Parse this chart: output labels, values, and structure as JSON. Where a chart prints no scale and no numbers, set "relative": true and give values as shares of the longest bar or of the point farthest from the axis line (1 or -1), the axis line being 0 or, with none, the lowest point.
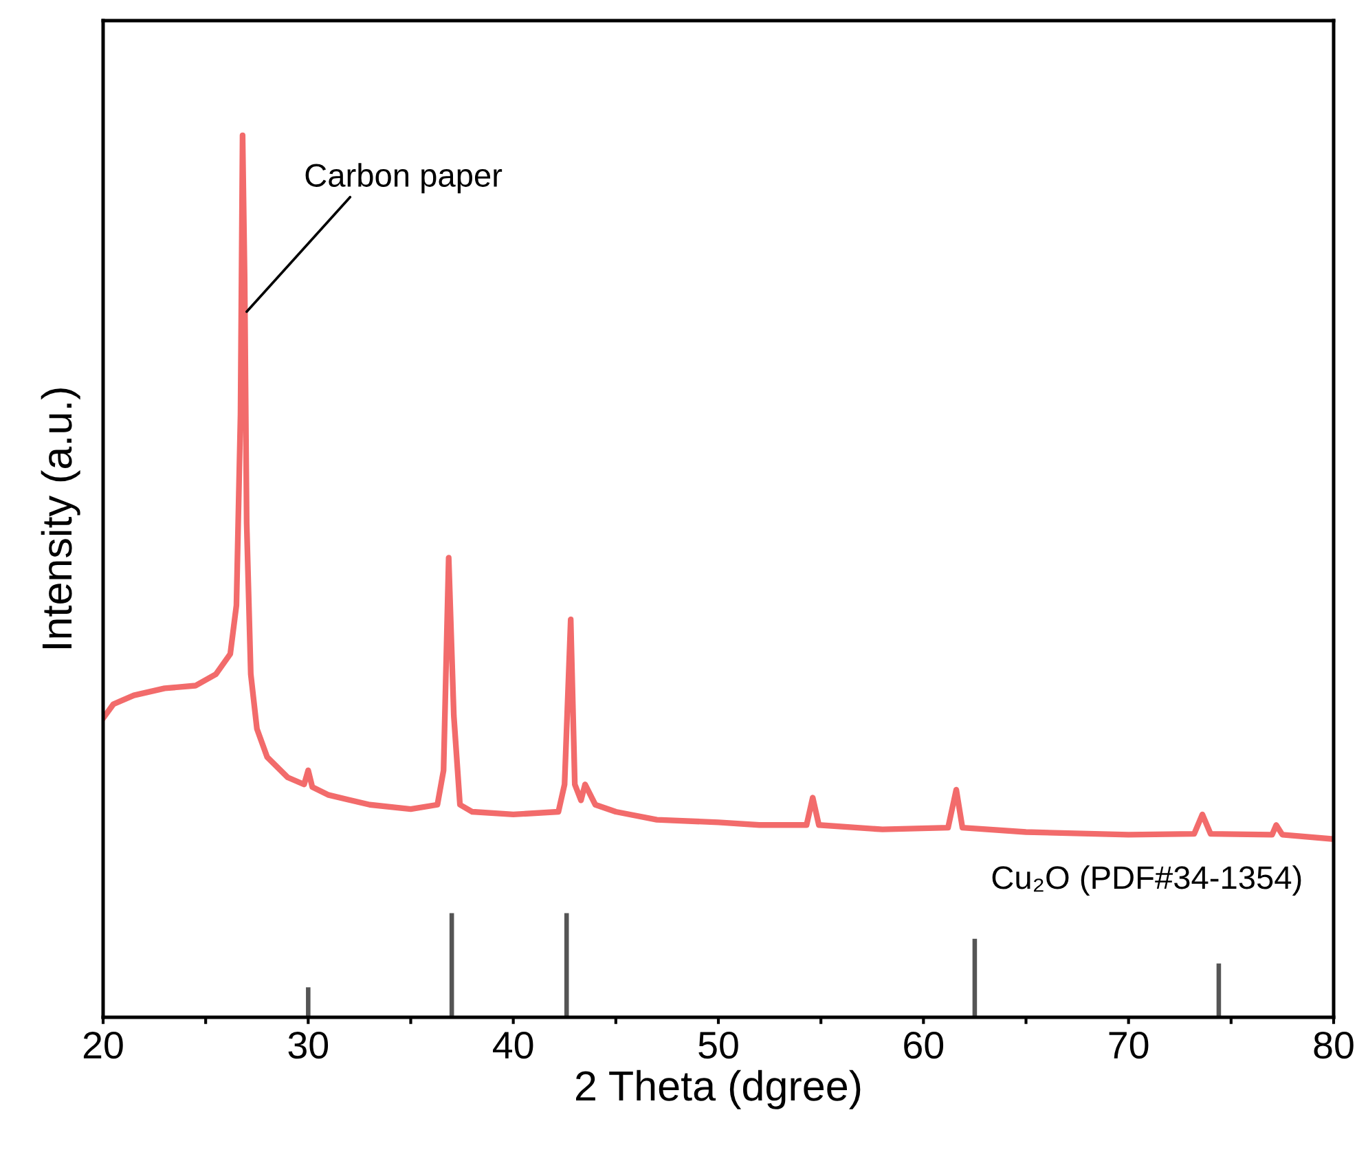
{
  "chart_data": {
    "type": "line",
    "xlabel": "2 Theta (dgree)",
    "ylabel": "Intensity (a.u.)",
    "relative": true,
    "xlim": [
      20,
      80
    ],
    "xticks": [
      20,
      {
        "value": 25,
        "label": null
      },
      30,
      {
        "value": 35,
        "label": null
      },
      40,
      {
        "value": 45,
        "label": null
      },
      50,
      {
        "value": 55,
        "label": null
      },
      60,
      {
        "value": 65,
        "label": null
      },
      70,
      {
        "value": 75,
        "label": null
      },
      80
    ],
    "grid": false,
    "legend": false,
    "tick_labels": "x",
    "series": [
      {
        "color": "#f26b6b",
        "x": [
          20.0,
          20.5,
          21.5,
          23,
          24.5,
          25.5,
          26.2,
          26.5,
          26.7,
          26.8,
          26.9,
          27.0,
          27.2,
          27.5,
          28,
          29,
          29.8,
          30.0,
          30.2,
          31,
          33,
          35,
          36.3,
          36.6,
          36.85,
          37.1,
          37.4,
          38,
          40,
          42.2,
          42.5,
          42.8,
          43.0,
          43.3,
          43.5,
          44,
          45,
          47,
          50,
          52,
          54.3,
          54.6,
          54.9,
          58,
          61.2,
          61.6,
          61.9,
          65,
          70,
          73.2,
          73.6,
          74.0,
          77.0,
          77.2,
          77.5,
          80
        ],
        "values": [
          0.339,
          0.355,
          0.365,
          0.373,
          0.376,
          0.389,
          0.412,
          0.467,
          0.684,
          1.0,
          0.84,
          0.56,
          0.389,
          0.327,
          0.295,
          0.272,
          0.264,
          0.28,
          0.261,
          0.252,
          0.241,
          0.236,
          0.241,
          0.28,
          0.521,
          0.342,
          0.241,
          0.233,
          0.23,
          0.233,
          0.264,
          0.451,
          0.264,
          0.246,
          0.264,
          0.241,
          0.233,
          0.224,
          0.221,
          0.218,
          0.218,
          0.249,
          0.218,
          0.213,
          0.215,
          0.258,
          0.215,
          0.21,
          0.207,
          0.208,
          0.23,
          0.208,
          0.207,
          0.218,
          0.207,
          0.202
        ]
      },
      {
        "type": "bar",
        "name": "Cu₂O (PDF#34-1354)",
        "color": "#555555",
        "x": [
          30.0,
          37.0,
          42.6,
          62.5,
          74.4
        ],
        "values": [
          0.034,
          0.118,
          0.118,
          0.089,
          0.061
        ]
      }
    ],
    "annotations": [
      {
        "text": "Carbon paper",
        "x": 27.0,
        "y": 0.8
      }
    ]
  }
}
